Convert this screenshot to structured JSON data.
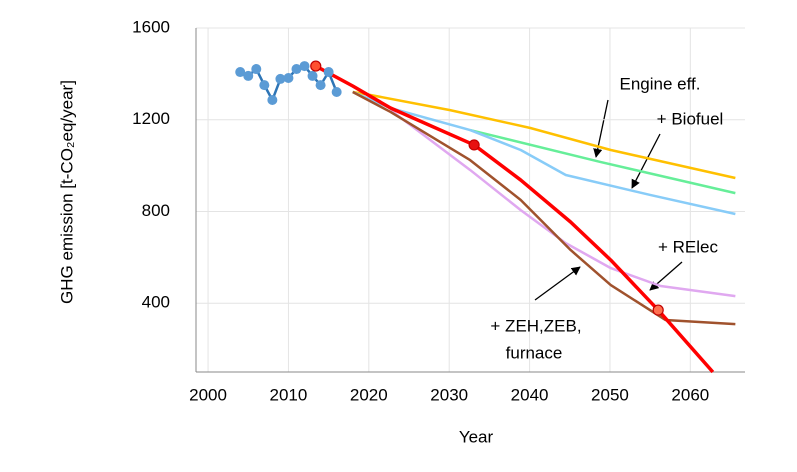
{
  "chart_data": {
    "type": "line",
    "xlabel": "Year",
    "ylabel": "GHG emission [t-CO₂eq/year]",
    "xlim": [
      1998.5,
      2066.8
    ],
    "xticks": [
      2000,
      2010,
      2020,
      2030,
      2040,
      2050,
      2060
    ],
    "ylim": [
      100,
      1600
    ],
    "yticks": [
      400,
      800,
      1200,
      1600
    ],
    "grid": true,
    "series": [
      {
        "color": "#ffc000",
        "width": 2.5,
        "x": [
          2018,
          2020.2,
          2030.1,
          2040.1,
          2050.1,
          2065.6
        ],
        "values": [
          1321,
          1308,
          1242,
          1164,
          1068,
          946
        ]
      },
      {
        "color": "#66ee99",
        "width": 2.5,
        "x": [
          2032.6,
          2048.8,
          2065.6
        ],
        "values": [
          1155,
          1016,
          880
        ]
      },
      {
        "color": "#88ccf8",
        "width": 2.5,
        "x": [
          2018,
          2022.7,
          2032.6,
          2038.9,
          2044.5,
          2055,
          2065.6
        ],
        "values": [
          1321,
          1251,
          1155,
          1068,
          959,
          872,
          789
        ]
      },
      {
        "color": "#e0a8f0",
        "width": 2.5,
        "x": [
          2022.7,
          2032.6,
          2038.9,
          2044.5,
          2050.1,
          2056.3,
          2065.6
        ],
        "values": [
          1242,
          981,
          806,
          662,
          553,
          475,
          431
        ]
      },
      {
        "color": "#a0522d",
        "width": 2.5,
        "x": [
          2018,
          2022.7,
          2032.6,
          2038.9,
          2045.1,
          2050.1,
          2056.9,
          2065.6
        ],
        "values": [
          1321,
          1234,
          1024,
          850,
          632,
          479,
          327,
          309
        ]
      },
      {
        "color": "#ff0000",
        "width": 3.5,
        "x": [
          2013.4,
          2018,
          2022.7,
          2033.1,
          2038.9,
          2045.1,
          2050.1,
          2056,
          2062.8
        ],
        "values": [
          1434,
          1347,
          1251,
          1090,
          937,
          754,
          588,
          370,
          100
        ]
      },
      {
        "color": "#2e75b6",
        "marker_color": "#5b9bd5",
        "width": 2.5,
        "markers": true,
        "x": [
          2004,
          2005,
          2006,
          2007,
          2008,
          2009,
          2010,
          2011,
          2012,
          2013,
          2014,
          2015,
          2016
        ],
        "values": [
          1408,
          1391,
          1421,
          1351,
          1286,
          1378,
          1382,
          1421,
          1434,
          1391,
          1351,
          1408,
          1321
        ]
      }
    ],
    "points": {
      "x": [
        2013.4,
        2033.1,
        2056
      ],
      "values": [
        1434,
        1090,
        370
      ],
      "colors": [
        "#ff5030",
        "#e81010",
        "#ff7050"
      ]
    },
    "annotations": [
      "Engine eff.",
      "+ Biofuel",
      "+ RElec",
      "+ ZEH,ZEB,",
      "furnace"
    ]
  }
}
